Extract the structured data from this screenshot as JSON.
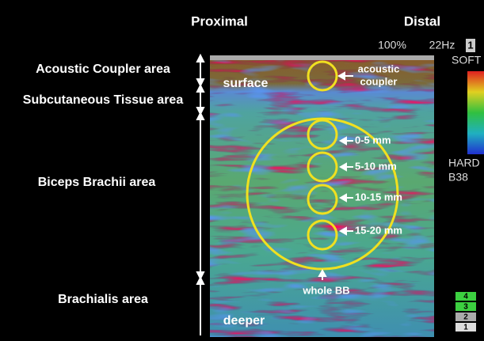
{
  "header": {
    "left": "Proximal",
    "right": "Distal"
  },
  "display": {
    "gain": "100%",
    "frequency": "22Hz",
    "index": "1",
    "soft": "SOFT",
    "hard": "HARD",
    "code": "B38"
  },
  "regions": [
    "Acoustic Coupler area",
    "Subcutaneous Tissue area",
    "Biceps Brachii area",
    "Brachialis area"
  ],
  "depth_labels": {
    "top": "surface",
    "bottom": "deeper"
  },
  "coupler_label": [
    "acoustic",
    "coupler"
  ],
  "rois": [
    "0-5 mm",
    "5-10 mm",
    "10-15 mm",
    "15-20 mm"
  ],
  "whole_label": "whole BB",
  "scale": [
    "4",
    "3",
    "2",
    "1"
  ]
}
